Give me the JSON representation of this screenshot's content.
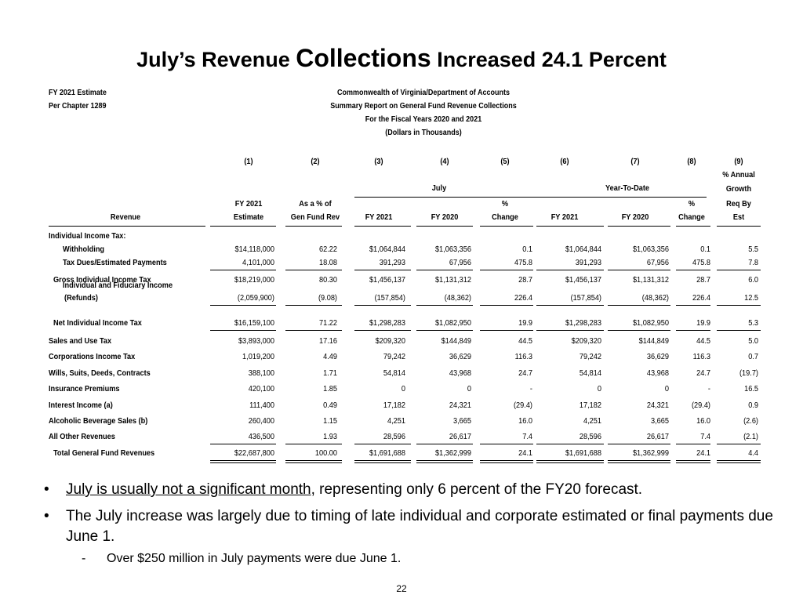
{
  "title": {
    "part1": "July’s Revenue ",
    "part2": "Collections",
    "part3": " Increased 24.1 Percent"
  },
  "header_left": [
    "FY 2021 Estimate",
    "Per Chapter 1289"
  ],
  "header_center": [
    "Commonwealth of Virginia/Department of Accounts",
    "Summary Report on General Fund Revenue Collections",
    "For the Fiscal Years 2020 and 2021",
    "(Dollars in Thousands)"
  ],
  "col_numbers": [
    "(1)",
    "(2)",
    "(3)",
    "(4)",
    "(5)",
    "(6)",
    "(7)",
    "(8)",
    "(9)"
  ],
  "group_labels": {
    "july": "July",
    "ytd": "Year-To-Date",
    "annual_1": "% Annual",
    "annual_2": "Growth"
  },
  "col_headers_top": {
    "c1": "FY 2021",
    "c2": "As a % of",
    "c5": "%",
    "c8": "%",
    "c9": "Req By"
  },
  "col_headers": [
    "Revenue",
    "Estimate",
    "Gen Fund Rev",
    "FY 2021",
    "FY 2020",
    "Change",
    "FY 2021",
    "FY 2020",
    "Change",
    "Est"
  ],
  "section_label": "Individual Income Tax:",
  "rows": [
    {
      "label": "Withholding",
      "values": [
        "$14,118,000",
        "62.22",
        "$1,064,844",
        "$1,063,356",
        "0.1",
        "$1,064,844",
        "$1,063,356",
        "0.1",
        "5.5"
      ]
    },
    {
      "label": "Tax Dues/Estimated Payments",
      "values": [
        "4,101,000",
        "18.08",
        "391,293",
        "67,956",
        "475.8",
        "391,293",
        "67,956",
        "475.8",
        "7.8"
      ]
    },
    {
      "label": "Gross Individual Income Tax",
      "values": [
        "$18,219,000",
        "80.30",
        "$1,456,137",
        "$1,131,312",
        "28.7",
        "$1,456,137",
        "$1,131,312",
        "28.7",
        "6.0"
      ]
    },
    {
      "label": "Individual and Fiduciary Income",
      "label2": "(Refunds)",
      "values": [
        "(2,059,900)",
        "(9.08)",
        "(157,854)",
        "(48,362)",
        "226.4",
        "(157,854)",
        "(48,362)",
        "226.4",
        "12.5"
      ]
    },
    {
      "label": "Net Individual Income Tax",
      "values": [
        "$16,159,100",
        "71.22",
        "$1,298,283",
        "$1,082,950",
        "19.9",
        "$1,298,283",
        "$1,082,950",
        "19.9",
        "5.3"
      ]
    },
    {
      "label": "Sales and Use Tax",
      "values": [
        "$3,893,000",
        "17.16",
        "$209,320",
        "$144,849",
        "44.5",
        "$209,320",
        "$144,849",
        "44.5",
        "5.0"
      ]
    },
    {
      "label": "Corporations Income Tax",
      "values": [
        "1,019,200",
        "4.49",
        "79,242",
        "36,629",
        "116.3",
        "79,242",
        "36,629",
        "116.3",
        "0.7"
      ]
    },
    {
      "label": "Wills, Suits, Deeds, Contracts",
      "values": [
        "388,100",
        "1.71",
        "54,814",
        "43,968",
        "24.7",
        "54,814",
        "43,968",
        "24.7",
        "(19.7)"
      ]
    },
    {
      "label": "Insurance Premiums",
      "values": [
        "420,100",
        "1.85",
        "0",
        "0",
        "-",
        "0",
        "0",
        "-",
        "16.5"
      ]
    },
    {
      "label": "Interest Income (a)",
      "values": [
        "111,400",
        "0.49",
        "17,182",
        "24,321",
        "(29.4)",
        "17,182",
        "24,321",
        "(29.4)",
        "0.9"
      ]
    },
    {
      "label": "Alcoholic Beverage Sales (b)",
      "values": [
        "260,400",
        "1.15",
        "4,251",
        "3,665",
        "16.0",
        "4,251",
        "3,665",
        "16.0",
        "(2.6)"
      ]
    },
    {
      "label": "All Other Revenues",
      "values": [
        "436,500",
        "1.93",
        "28,596",
        "26,617",
        "7.4",
        "28,596",
        "26,617",
        "7.4",
        "(2.1)"
      ]
    },
    {
      "label": "Total General Fund Revenues",
      "values": [
        "$22,687,800",
        "100.00",
        "$1,691,688",
        "$1,362,999",
        "24.1",
        "$1,691,688",
        "$1,362,999",
        "24.1",
        "4.4"
      ]
    }
  ],
  "bullets": [
    {
      "underlined": "July is usually not a significant month",
      "rest": ", representing only 6 percent of the FY20 forecast."
    },
    {
      "text": "The July increase was largely due to timing of late individual and corporate estimated or final payments due June 1."
    }
  ],
  "sub_bullet": "Over $250 million in July payments were due June 1.",
  "bullet_glyph": "•",
  "dash_glyph": "-",
  "page_number": "22"
}
